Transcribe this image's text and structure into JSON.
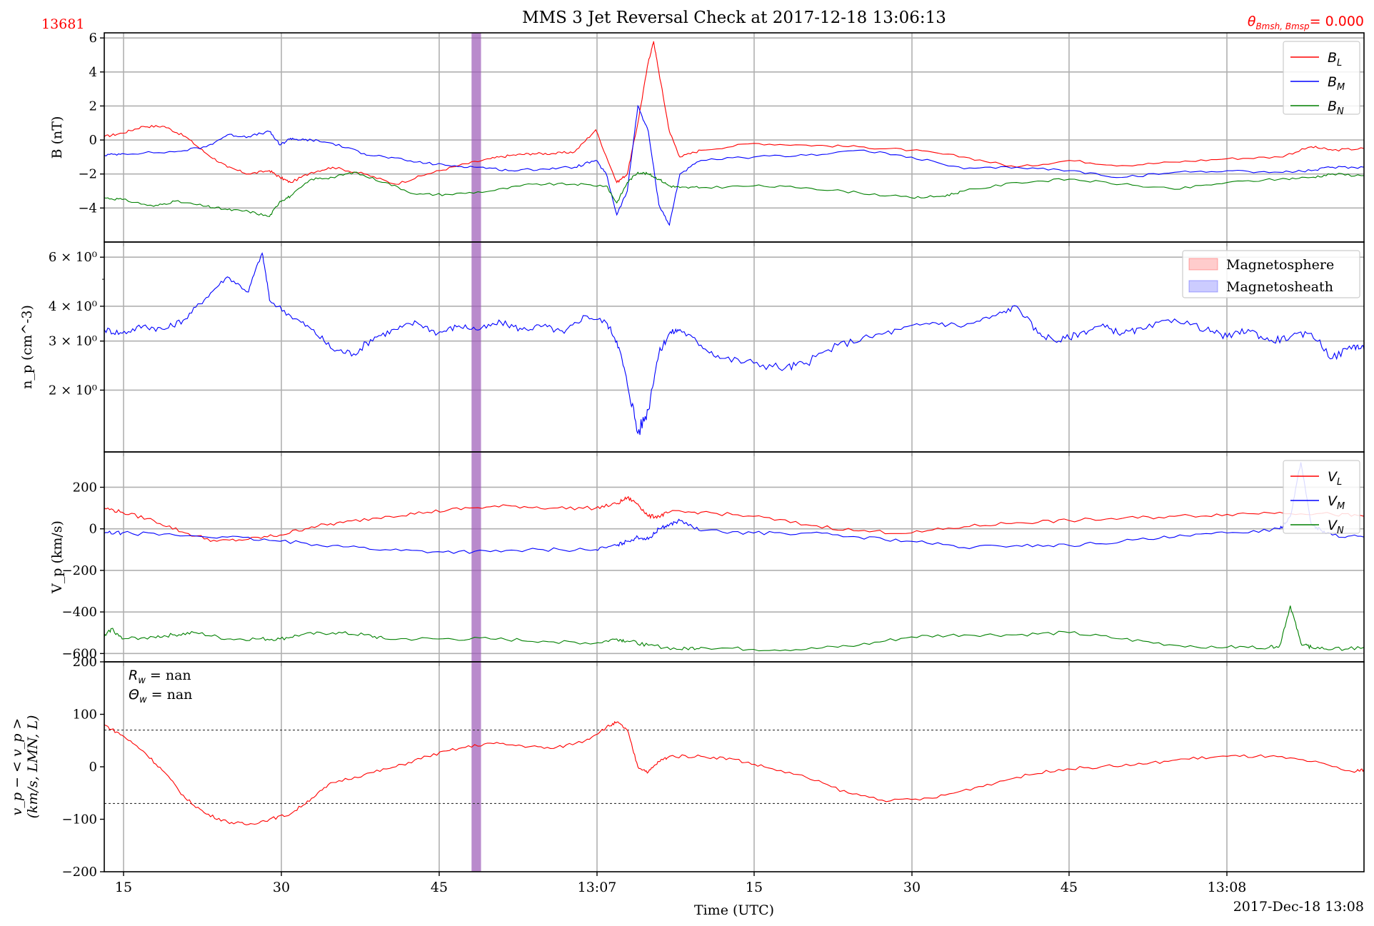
{
  "figure": {
    "title": "MMS 3 Jet Reversal Check at 2017-12-18 13:06:13",
    "event_id": "13681",
    "theta_label": "θ",
    "theta_sub": "Bmsh, Bmsp",
    "theta_value": "= 0.000",
    "xlabel": "Time (UTC)",
    "date_label": "2017-Dec-18 13:08",
    "x_tick_labels": [
      "15",
      "30",
      "45",
      "13:07",
      "15",
      "30",
      "45",
      "13:08"
    ],
    "highlight_band": {
      "start_s": 48.2,
      "end_s": 49.1,
      "color": "#9b59b6"
    }
  },
  "chart_data": [
    {
      "type": "line",
      "panel": "magnetic-field",
      "ylabel": "B (nT)",
      "ylim": [
        -6.0,
        6.3
      ],
      "yticks": [
        -4,
        -2,
        0,
        2,
        4,
        6
      ],
      "xlim_s": [
        13.3,
        133.0
      ],
      "legend": "top-right",
      "series": [
        {
          "name": "B",
          "sub": "L",
          "color": "#ff0000",
          "x": [
            13.3,
            15,
            17,
            19,
            21,
            23,
            25,
            27,
            29,
            30,
            31,
            33,
            35,
            38,
            41,
            44,
            47,
            50,
            52,
            54,
            56,
            58,
            60,
            62,
            63,
            64,
            65,
            65.5,
            66,
            67,
            68,
            70,
            75,
            80,
            85,
            90,
            95,
            100,
            105,
            110,
            115,
            120,
            125,
            128,
            130,
            133
          ],
          "y": [
            0.2,
            0.4,
            0.8,
            0.8,
            0.2,
            -0.8,
            -1.6,
            -2.0,
            -1.8,
            -2.2,
            -2.5,
            -1.9,
            -1.6,
            -2.0,
            -2.6,
            -2.0,
            -1.5,
            -1.1,
            -0.9,
            -0.8,
            -0.8,
            -0.7,
            0.6,
            -2.5,
            -2.0,
            1.0,
            4.6,
            5.8,
            4.0,
            0.5,
            -1.0,
            -0.6,
            -0.2,
            -0.3,
            -0.4,
            -0.6,
            -1.0,
            -1.6,
            -1.2,
            -1.5,
            -1.3,
            -1.1,
            -1.0,
            -0.4,
            -0.6,
            -0.5
          ]
        },
        {
          "name": "B",
          "sub": "M",
          "color": "#0000ff",
          "x": [
            13.3,
            15,
            20,
            23,
            25,
            27,
            29,
            30,
            31,
            32,
            33,
            35,
            38,
            40,
            43,
            46,
            49,
            52,
            55,
            58,
            60,
            61,
            62,
            63,
            64,
            65,
            66,
            67,
            68,
            70,
            75,
            80,
            85,
            90,
            95,
            100,
            105,
            110,
            115,
            120,
            125,
            128,
            130,
            133
          ],
          "y": [
            -0.9,
            -0.8,
            -0.7,
            -0.4,
            0.3,
            0.2,
            0.5,
            -0.3,
            0.1,
            0.0,
            0.0,
            -0.2,
            -0.8,
            -1.0,
            -1.3,
            -1.5,
            -1.6,
            -1.8,
            -1.7,
            -1.6,
            -1.2,
            -2.0,
            -4.4,
            -3.0,
            2.0,
            0.5,
            -3.8,
            -5.0,
            -2.0,
            -1.2,
            -1.0,
            -0.9,
            -0.6,
            -1.0,
            -1.7,
            -1.6,
            -1.8,
            -2.2,
            -1.9,
            -1.8,
            -1.9,
            -1.8,
            -1.6,
            -1.6
          ]
        },
        {
          "name": "B",
          "sub": "N",
          "color": "#008000",
          "x": [
            13.3,
            15,
            18,
            20,
            23,
            25,
            27,
            29,
            30,
            31,
            33,
            35,
            37,
            40,
            43,
            46,
            50,
            54,
            58,
            61,
            62,
            63,
            64,
            65,
            66,
            67,
            68,
            70,
            75,
            80,
            85,
            90,
            93,
            95,
            100,
            105,
            110,
            115,
            120,
            125,
            128,
            130,
            133
          ],
          "y": [
            -3.4,
            -3.5,
            -3.9,
            -3.6,
            -3.9,
            -4.1,
            -4.2,
            -4.5,
            -3.6,
            -3.3,
            -2.3,
            -2.2,
            -1.9,
            -2.5,
            -3.2,
            -3.2,
            -3.0,
            -2.6,
            -2.6,
            -2.7,
            -3.7,
            -2.5,
            -1.9,
            -2.0,
            -2.3,
            -2.7,
            -2.8,
            -2.8,
            -2.7,
            -2.8,
            -3.1,
            -3.4,
            -3.3,
            -3.0,
            -2.5,
            -2.3,
            -2.6,
            -2.9,
            -2.5,
            -2.3,
            -2.2,
            -2.0,
            -2.1
          ]
        }
      ]
    },
    {
      "type": "line",
      "panel": "density",
      "ylabel": "n_p (cm^-3)",
      "yscale": "log",
      "ylim": [
        1.2,
        6.8
      ],
      "yticks": [
        2,
        3,
        4,
        6
      ],
      "ytick_labels": [
        "2 × 10⁰",
        "3 × 10⁰",
        "4 × 10⁰",
        "6 × 10⁰"
      ],
      "xlim_s": [
        13.3,
        133.0
      ],
      "legend": "top-right",
      "legend_entries": [
        {
          "label": "Magnetosphere",
          "color": "#ff0000"
        },
        {
          "label": "Magnetosheath",
          "color": "#0000ff"
        }
      ],
      "series": [
        {
          "color": "#0000ff",
          "x": [
            13.3,
            15,
            17,
            19,
            21,
            23,
            25,
            27,
            28.3,
            29,
            31,
            33,
            35,
            37,
            39,
            41,
            43,
            45,
            47,
            49,
            51,
            53,
            55,
            57,
            59,
            61,
            62,
            63,
            64,
            65,
            66,
            67,
            68,
            70,
            72,
            75,
            78,
            80,
            83,
            86,
            89,
            92,
            95,
            98,
            100,
            102,
            104,
            106,
            108,
            110,
            112,
            115,
            118,
            120,
            122,
            124,
            126,
            128,
            130,
            132,
            133
          ],
          "y": [
            3.3,
            3.2,
            3.4,
            3.3,
            3.6,
            4.3,
            5.1,
            4.5,
            6.2,
            4.2,
            3.7,
            3.3,
            2.8,
            2.7,
            3.1,
            3.3,
            3.5,
            3.2,
            3.4,
            3.3,
            3.5,
            3.3,
            3.4,
            3.2,
            3.7,
            3.5,
            3.0,
            2.1,
            1.4,
            1.7,
            2.7,
            3.2,
            3.3,
            2.9,
            2.6,
            2.5,
            2.4,
            2.5,
            2.9,
            3.1,
            3.3,
            3.5,
            3.4,
            3.7,
            4.0,
            3.2,
            3.0,
            3.2,
            3.4,
            3.2,
            3.3,
            3.6,
            3.3,
            3.1,
            3.3,
            3.0,
            3.1,
            3.2,
            2.6,
            2.9,
            2.8
          ]
        }
      ]
    },
    {
      "type": "line",
      "panel": "velocity",
      "ylabel": "V_p (km/s)",
      "ylim": [
        -640,
        370
      ],
      "yticks": [
        -600,
        -400,
        -200,
        0,
        200
      ],
      "xlim_s": [
        13.3,
        133.0
      ],
      "legend": "top-right",
      "series": [
        {
          "name": "V",
          "sub": "L",
          "color": "#ff0000",
          "x": [
            13.3,
            15,
            18,
            21,
            24,
            27,
            30,
            33,
            36,
            40,
            44,
            48,
            52,
            56,
            60,
            62,
            63,
            64,
            65,
            66,
            67,
            70,
            75,
            80,
            85,
            90,
            95,
            100,
            105,
            110,
            115,
            120,
            125,
            130,
            133
          ],
          "y": [
            100,
            80,
            40,
            -20,
            -60,
            -50,
            -30,
            10,
            30,
            60,
            80,
            100,
            110,
            100,
            100,
            120,
            150,
            120,
            60,
            60,
            80,
            80,
            60,
            20,
            -10,
            -20,
            10,
            30,
            40,
            50,
            60,
            70,
            80,
            70,
            60
          ]
        },
        {
          "name": "V",
          "sub": "M",
          "color": "#0000ff",
          "x": [
            13.3,
            15,
            20,
            25,
            30,
            35,
            40,
            45,
            50,
            55,
            60,
            62,
            63,
            64,
            65,
            66,
            67,
            68,
            70,
            75,
            80,
            85,
            90,
            95,
            100,
            105,
            110,
            115,
            120,
            125,
            126,
            127,
            128,
            129,
            130,
            133
          ],
          "y": [
            -20,
            -20,
            -30,
            -40,
            -60,
            -80,
            -100,
            -110,
            -110,
            -100,
            -100,
            -80,
            -60,
            -40,
            -50,
            0,
            20,
            40,
            -10,
            -20,
            -20,
            -40,
            -60,
            -90,
            -80,
            -80,
            -60,
            -40,
            -20,
            0,
            60,
            320,
            20,
            -10,
            -30,
            -40
          ]
        },
        {
          "name": "V",
          "sub": "N",
          "color": "#008000",
          "x": [
            13.3,
            14,
            15,
            18,
            20,
            22,
            25,
            28,
            30,
            32,
            35,
            38,
            40,
            45,
            50,
            55,
            60,
            62,
            63,
            65,
            68,
            70,
            75,
            80,
            85,
            90,
            95,
            100,
            105,
            110,
            115,
            120,
            124,
            125,
            126,
            127,
            128,
            130,
            133
          ],
          "y": [
            -520,
            -480,
            -530,
            -520,
            -510,
            -500,
            -530,
            -530,
            -530,
            -510,
            -500,
            -510,
            -530,
            -530,
            -530,
            -540,
            -550,
            -530,
            -540,
            -560,
            -580,
            -570,
            -580,
            -580,
            -560,
            -520,
            -510,
            -510,
            -500,
            -530,
            -560,
            -570,
            -570,
            -560,
            -370,
            -550,
            -570,
            -580,
            -570
          ]
        }
      ]
    },
    {
      "type": "line",
      "panel": "velocity-deviation",
      "ylabel_line1": "v_p − < v_p >",
      "ylabel_line2": "(km/s, LMN, L)",
      "ylim": [
        -200,
        200
      ],
      "yticks": [
        -200,
        -100,
        0,
        100,
        200
      ],
      "xlim_s": [
        13.3,
        133.0
      ],
      "annotations": [
        "R_w = nan",
        "Θ_w = nan"
      ],
      "reference_lines": [
        70,
        -70
      ],
      "series": [
        {
          "color": "#ff0000",
          "x": [
            13.3,
            15,
            17,
            19,
            21,
            23,
            25,
            27,
            29,
            31,
            33,
            35,
            38,
            41,
            44,
            47,
            50,
            53,
            56,
            59,
            61,
            62,
            63,
            64,
            65,
            66,
            67,
            70,
            73,
            76,
            80,
            84,
            88,
            92,
            96,
            100,
            104,
            108,
            112,
            116,
            120,
            124,
            128,
            132,
            133
          ],
          "y": [
            80,
            60,
            30,
            -10,
            -60,
            -90,
            -105,
            -110,
            -100,
            -90,
            -60,
            -30,
            -15,
            0,
            20,
            35,
            45,
            40,
            35,
            50,
            75,
            85,
            70,
            0,
            -10,
            10,
            20,
            20,
            15,
            0,
            -20,
            -50,
            -65,
            -60,
            -40,
            -20,
            -5,
            0,
            5,
            15,
            20,
            20,
            10,
            -10,
            -5
          ]
        }
      ]
    }
  ]
}
